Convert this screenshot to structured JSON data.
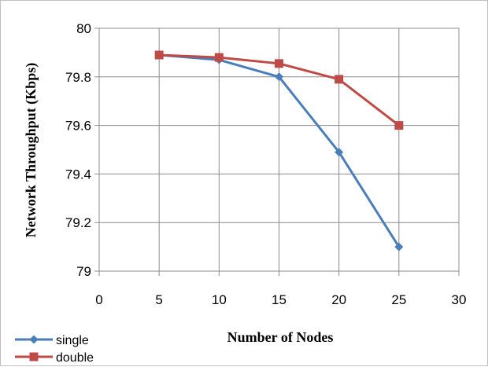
{
  "chart_data": {
    "type": "line",
    "title": "",
    "xlabel": "Number of Nodes",
    "ylabel": "Network Throughput (Kbps)",
    "xlim": [
      0,
      30
    ],
    "ylim": [
      79,
      80
    ],
    "xticks": [
      0,
      5,
      10,
      15,
      20,
      25,
      30
    ],
    "yticks": [
      "79",
      "79.2",
      "79.4",
      "79.6",
      "79.8",
      "80"
    ],
    "grid": true,
    "legend_position": "bottom-left",
    "x": [
      5,
      10,
      15,
      20,
      25
    ],
    "series": [
      {
        "name": "single",
        "values": [
          79.89,
          79.87,
          79.8,
          79.49,
          79.1
        ],
        "color": "#4a7ebb",
        "marker": "diamond"
      },
      {
        "name": "double",
        "values": [
          79.89,
          79.88,
          79.855,
          79.79,
          79.6
        ],
        "color": "#be4b48",
        "marker": "square"
      }
    ]
  }
}
